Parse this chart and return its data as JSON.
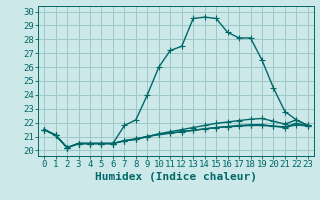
{
  "xlabel": "Humidex (Indice chaleur)",
  "bg_color": "#cce8e8",
  "grid_color": "#9dc8c8",
  "line_color": "#006868",
  "xlim": [
    -0.5,
    23.5
  ],
  "ylim": [
    19.6,
    30.4
  ],
  "xticks": [
    0,
    1,
    2,
    3,
    4,
    5,
    6,
    7,
    8,
    9,
    10,
    11,
    12,
    13,
    14,
    15,
    16,
    17,
    18,
    19,
    20,
    21,
    22,
    23
  ],
  "yticks": [
    20,
    21,
    22,
    23,
    24,
    25,
    26,
    27,
    28,
    29,
    30
  ],
  "series1": [
    21.5,
    21.1,
    20.2,
    20.5,
    20.5,
    20.5,
    20.5,
    21.8,
    22.2,
    24.0,
    26.0,
    27.2,
    27.5,
    29.5,
    29.6,
    29.5,
    28.5,
    28.1,
    28.1,
    26.5,
    24.5,
    22.8,
    22.2,
    21.8
  ],
  "series2": [
    21.5,
    21.1,
    20.2,
    20.5,
    20.5,
    20.5,
    20.5,
    20.7,
    20.8,
    21.0,
    21.2,
    21.35,
    21.5,
    21.65,
    21.8,
    21.95,
    22.05,
    22.15,
    22.25,
    22.3,
    22.1,
    21.9,
    22.2,
    21.8
  ],
  "series3": [
    21.5,
    21.1,
    20.2,
    20.5,
    20.5,
    20.5,
    20.5,
    20.7,
    20.8,
    21.0,
    21.15,
    21.25,
    21.35,
    21.45,
    21.55,
    21.65,
    21.72,
    21.8,
    21.85,
    21.85,
    21.75,
    21.65,
    21.85,
    21.75
  ],
  "series4": [
    21.5,
    21.1,
    20.2,
    20.5,
    20.5,
    20.5,
    20.5,
    20.7,
    20.85,
    21.0,
    21.15,
    21.25,
    21.35,
    21.45,
    21.55,
    21.65,
    21.7,
    21.75,
    21.8,
    21.8,
    21.75,
    21.7,
    21.95,
    21.75
  ],
  "marker": "+",
  "markersize": 4,
  "linewidth": 1.0,
  "xlabel_fontsize": 8,
  "tick_fontsize": 6.5
}
